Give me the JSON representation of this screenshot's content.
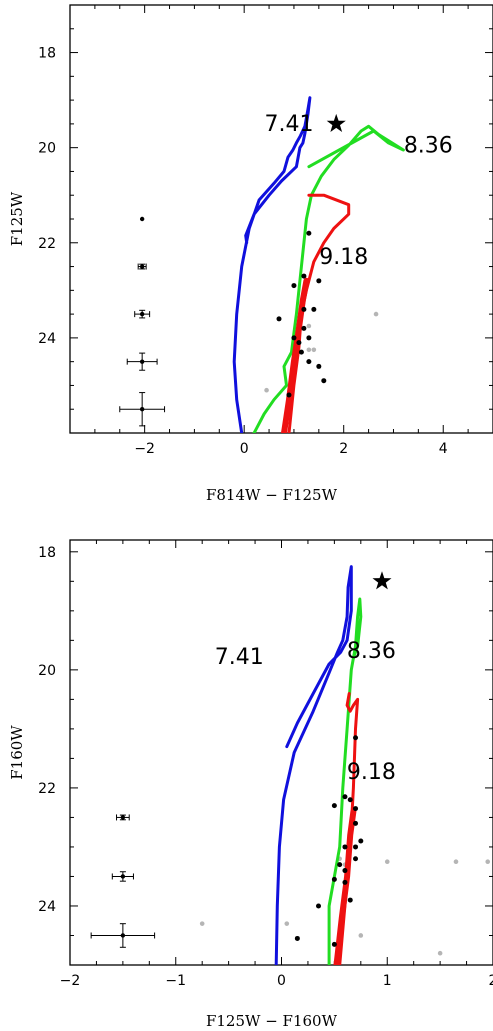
{
  "chart_data": [
    {
      "type": "scatter",
      "xlabel": "F814W − F125W",
      "ylabel": "F125W",
      "xlim": [
        -3.5,
        5.0
      ],
      "ylim": [
        26.0,
        17.0
      ],
      "x_ticks": [
        -2,
        0,
        2,
        4
      ],
      "y_ticks": [
        18,
        20,
        22,
        24
      ],
      "isochrone_labels": [
        {
          "text": "7.41",
          "x": 0.9,
          "y": 19.65
        },
        {
          "text": "8.36",
          "x": 3.7,
          "y": 20.1
        },
        {
          "text": "9.18",
          "x": 2.0,
          "y": 22.45
        }
      ],
      "star_marker": {
        "x": 1.85,
        "y": 19.5
      },
      "isochrones": [
        {
          "color": "#1010dd",
          "width": 3,
          "points": [
            [
              -0.05,
              26.0
            ],
            [
              -0.15,
              25.3
            ],
            [
              -0.2,
              24.5
            ],
            [
              -0.15,
              23.5
            ],
            [
              -0.05,
              22.5
            ],
            [
              0.1,
              21.7
            ],
            [
              0.3,
              21.1
            ],
            [
              0.6,
              20.75
            ],
            [
              0.8,
              20.5
            ],
            [
              0.88,
              20.2
            ],
            [
              0.98,
              20.05
            ],
            [
              1.05,
              19.9
            ],
            [
              1.13,
              19.75
            ],
            [
              1.22,
              19.55
            ],
            [
              1.28,
              19.2
            ],
            [
              1.32,
              18.95
            ],
            [
              1.28,
              19.3
            ],
            [
              1.22,
              19.7
            ],
            [
              1.18,
              19.9
            ],
            [
              1.12,
              20.0
            ],
            [
              1.05,
              20.4
            ],
            [
              0.75,
              20.7
            ],
            [
              0.5,
              21.0
            ],
            [
              0.2,
              21.4
            ],
            [
              0.03,
              21.85
            ],
            [
              0.05,
              22.0
            ]
          ]
        },
        {
          "color": "#22dd22",
          "width": 3,
          "points": [
            [
              0.2,
              26.0
            ],
            [
              0.4,
              25.6
            ],
            [
              0.6,
              25.3
            ],
            [
              0.85,
              25.0
            ],
            [
              0.8,
              24.6
            ],
            [
              0.95,
              24.3
            ],
            [
              1.0,
              23.9
            ],
            [
              1.05,
              23.5
            ],
            [
              1.1,
              23.0
            ],
            [
              1.15,
              22.5
            ],
            [
              1.2,
              22.0
            ],
            [
              1.25,
              21.5
            ],
            [
              1.35,
              21.0
            ],
            [
              1.55,
              20.6
            ],
            [
              1.8,
              20.25
            ],
            [
              2.1,
              19.95
            ],
            [
              2.35,
              19.65
            ],
            [
              2.5,
              19.55
            ],
            [
              2.7,
              19.72
            ],
            [
              3.2,
              20.05
            ],
            [
              2.9,
              19.9
            ],
            [
              2.6,
              19.65
            ],
            [
              1.3,
              20.4
            ]
          ]
        },
        {
          "color": "#ee1111",
          "width": 3,
          "points": [
            [
              0.9,
              26.0
            ],
            [
              1.0,
              25.0
            ],
            [
              1.1,
              24.2
            ],
            [
              1.15,
              23.5
            ],
            [
              1.25,
              23.0
            ],
            [
              1.4,
              22.4
            ],
            [
              1.6,
              22.0
            ],
            [
              1.8,
              21.7
            ],
            [
              2.1,
              21.4
            ],
            [
              2.1,
              21.2
            ],
            [
              1.6,
              21.0
            ],
            [
              1.3,
              21.0
            ]
          ]
        },
        {
          "color": "#ee1111",
          "width": 6,
          "points": [
            [
              0.8,
              26.0
            ],
            [
              0.9,
              25.3
            ],
            [
              1.0,
              24.5
            ],
            [
              1.1,
              23.8
            ],
            [
              1.18,
              23.2
            ],
            [
              1.25,
              22.8
            ]
          ]
        }
      ],
      "stars_black": [
        [
          0.7,
          23.6
        ],
        [
          1.0,
          22.9
        ],
        [
          1.2,
          22.7
        ],
        [
          1.0,
          24.0
        ],
        [
          1.2,
          23.8
        ],
        [
          1.15,
          24.3
        ],
        [
          1.3,
          24.0
        ],
        [
          1.3,
          24.5
        ],
        [
          1.5,
          24.6
        ],
        [
          1.6,
          24.9
        ],
        [
          1.4,
          23.4
        ],
        [
          1.5,
          22.8
        ],
        [
          1.3,
          21.8
        ],
        [
          0.9,
          25.2
        ],
        [
          1.1,
          24.1
        ],
        [
          1.2,
          23.4
        ]
      ],
      "stars_gray": [
        [
          1.3,
          23.75
        ],
        [
          1.3,
          24.25
        ],
        [
          1.4,
          24.25
        ],
        [
          2.65,
          23.5
        ],
        [
          0.45,
          25.1
        ]
      ],
      "error_bars": [
        {
          "x": -2.05,
          "y": 21.5,
          "xerr": 0.0,
          "yerr": 0.0
        },
        {
          "x": -2.05,
          "y": 22.5,
          "xerr": 0.08,
          "yerr": 0.05
        },
        {
          "x": -2.05,
          "y": 23.5,
          "xerr": 0.15,
          "yerr": 0.08
        },
        {
          "x": -2.05,
          "y": 24.5,
          "xerr": 0.3,
          "yerr": 0.18
        },
        {
          "x": -2.05,
          "y": 25.5,
          "xerr": 0.45,
          "yerr": 0.35
        }
      ]
    },
    {
      "type": "scatter",
      "xlabel": "F125W − F160W",
      "ylabel": "F160W",
      "xlim": [
        -2.0,
        2.0
      ],
      "ylim": [
        25.0,
        17.8
      ],
      "x_ticks": [
        -2,
        -1,
        0,
        1,
        2
      ],
      "y_ticks": [
        18,
        20,
        22,
        24
      ],
      "isochrone_labels": [
        {
          "text": "7.41",
          "x": -0.4,
          "y": 19.9
        },
        {
          "text": "8.36",
          "x": 0.85,
          "y": 19.8
        },
        {
          "text": "9.18",
          "x": 0.85,
          "y": 21.85
        }
      ],
      "star_marker": {
        "x": 0.95,
        "y": 18.5
      },
      "isochrones": [
        {
          "color": "#1010dd",
          "width": 3,
          "points": [
            [
              -0.05,
              25.0
            ],
            [
              -0.04,
              24.0
            ],
            [
              -0.02,
              23.0
            ],
            [
              0.02,
              22.2
            ],
            [
              0.12,
              21.4
            ],
            [
              0.3,
              20.7
            ],
            [
              0.45,
              20.05
            ],
            [
              0.53,
              19.7
            ],
            [
              0.58,
              19.5
            ],
            [
              0.62,
              19.1
            ],
            [
              0.63,
              18.6
            ],
            [
              0.66,
              18.25
            ],
            [
              0.66,
              19.0
            ],
            [
              0.62,
              19.5
            ],
            [
              0.56,
              19.7
            ],
            [
              0.45,
              19.9
            ],
            [
              0.3,
              20.4
            ],
            [
              0.15,
              20.9
            ],
            [
              0.05,
              21.3
            ]
          ]
        },
        {
          "color": "#22dd22",
          "width": 3,
          "points": [
            [
              0.45,
              25.0
            ],
            [
              0.45,
              24.0
            ],
            [
              0.5,
              23.5
            ],
            [
              0.55,
              23.0
            ],
            [
              0.58,
              22.0
            ],
            [
              0.62,
              21.0
            ],
            [
              0.66,
              20.0
            ],
            [
              0.7,
              19.6
            ],
            [
              0.72,
              19.1
            ],
            [
              0.74,
              18.8
            ],
            [
              0.75,
              19.1
            ],
            [
              0.72,
              19.6
            ],
            [
              0.68,
              19.8
            ]
          ]
        },
        {
          "color": "#ee1111",
          "width": 3,
          "points": [
            [
              0.55,
              25.0
            ],
            [
              0.6,
              24.0
            ],
            [
              0.65,
              23.0
            ],
            [
              0.68,
              22.0
            ],
            [
              0.7,
              21.0
            ],
            [
              0.72,
              20.5
            ],
            [
              0.68,
              20.6
            ],
            [
              0.65,
              20.7
            ],
            [
              0.62,
              20.6
            ],
            [
              0.64,
              20.4
            ]
          ]
        },
        {
          "color": "#ee1111",
          "width": 6,
          "points": [
            [
              0.52,
              25.0
            ],
            [
              0.57,
              24.2
            ],
            [
              0.62,
              23.5
            ],
            [
              0.65,
              22.8
            ],
            [
              0.68,
              22.4
            ]
          ]
        }
      ],
      "stars_black": [
        [
          0.5,
          22.3
        ],
        [
          0.6,
          22.15
        ],
        [
          0.65,
          22.2
        ],
        [
          0.7,
          22.35
        ],
        [
          0.75,
          22.9
        ],
        [
          0.7,
          23.0
        ],
        [
          0.6,
          23.0
        ],
        [
          0.7,
          23.2
        ],
        [
          0.55,
          23.3
        ],
        [
          0.5,
          23.55
        ],
        [
          0.6,
          23.6
        ],
        [
          0.65,
          23.9
        ],
        [
          0.35,
          24.0
        ],
        [
          0.15,
          24.55
        ],
        [
          0.5,
          24.65
        ],
        [
          0.7,
          21.15
        ],
        [
          0.7,
          22.6
        ],
        [
          0.6,
          23.4
        ]
      ],
      "stars_gray": [
        [
          0.55,
          23.2
        ],
        [
          0.6,
          23.3
        ],
        [
          1.0,
          23.25
        ],
        [
          1.65,
          23.25
        ],
        [
          1.95,
          23.25
        ],
        [
          -0.75,
          24.3
        ],
        [
          0.05,
          24.3
        ],
        [
          0.55,
          24.8
        ],
        [
          1.5,
          24.8
        ],
        [
          0.75,
          24.5
        ]
      ],
      "error_bars": [
        {
          "x": -1.5,
          "y": 22.5,
          "xerr": 0.06,
          "yerr": 0.04
        },
        {
          "x": -1.5,
          "y": 23.5,
          "xerr": 0.1,
          "yerr": 0.08
        },
        {
          "x": -1.5,
          "y": 24.5,
          "xerr": 0.3,
          "yerr": 0.2
        }
      ]
    }
  ]
}
